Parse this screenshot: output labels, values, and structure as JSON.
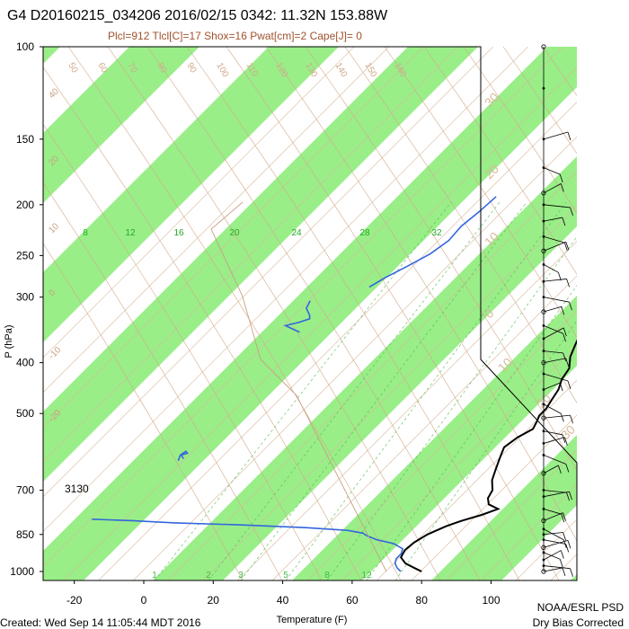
{
  "chart_data": {
    "type": "line",
    "title": "G4 D20160215_034206 2016/02/15 0342: 11.32N 153.88W",
    "subtitle": "Plcl=912 Tlcl[C]=17 Shox=16 Pwat[cm]=2 Cape[J]= 0",
    "xlabel": "Temperature (F)",
    "ylabel": "P (hPa)",
    "x_ticks": [
      "-20",
      "0",
      "20",
      "40",
      "60",
      "80",
      "100"
    ],
    "y_ticks": [
      "100",
      "150",
      "200",
      "250",
      "300",
      "400",
      "500",
      "700",
      "850",
      "1000"
    ],
    "pressure_levels": [
      100,
      150,
      200,
      250,
      300,
      400,
      500,
      700,
      850,
      1000
    ],
    "xlim": [
      -29,
      102
    ],
    "ylim": [
      1000,
      100
    ],
    "mixing_ratio_labels": [
      "8",
      "12",
      "16",
      "20",
      "24",
      "28",
      "32"
    ],
    "mixing_ratio_bottom_labels": [
      "1",
      "2",
      "3",
      "5",
      "8",
      "12"
    ],
    "isotherm_labels_left": [
      "40",
      "20",
      "10",
      "0",
      "-10",
      "-20"
    ],
    "isotherm_labels_right": [
      "30",
      "20",
      "10",
      "0",
      "10",
      "20",
      "30"
    ],
    "dry_adiabat_labels": [
      "50",
      "60",
      "70",
      "80",
      "90",
      "100",
      "110",
      "120",
      "130",
      "140",
      "150",
      "160"
    ],
    "annotation": "3130",
    "series": [
      {
        "name": "Temperature",
        "color": "#000000",
        "points": [
          [
            1000,
            80
          ],
          [
            985,
            77
          ],
          [
            965,
            73
          ],
          [
            940,
            70
          ],
          [
            910,
            69
          ],
          [
            880,
            69.5
          ],
          [
            850,
            71
          ],
          [
            820,
            74
          ],
          [
            800,
            77
          ],
          [
            780,
            81
          ],
          [
            760,
            84
          ],
          [
            745,
            80
          ],
          [
            725,
            78
          ],
          [
            700,
            77
          ],
          [
            670,
            74
          ],
          [
            640,
            72
          ],
          [
            610,
            70
          ],
          [
            580,
            68
          ],
          [
            555,
            69
          ],
          [
            535,
            71
          ],
          [
            518,
            70
          ],
          [
            505,
            69
          ],
          [
            490,
            69
          ],
          [
            470,
            68
          ],
          [
            450,
            67
          ],
          [
            430,
            65
          ],
          [
            410,
            64
          ],
          [
            390,
            61
          ],
          [
            370,
            59
          ],
          [
            350,
            57
          ],
          [
            330,
            54
          ],
          [
            310,
            52
          ],
          [
            290,
            50
          ],
          [
            270,
            47
          ],
          [
            250,
            43
          ],
          [
            230,
            38
          ],
          [
            210,
            33
          ],
          [
            195,
            28
          ],
          [
            182,
            24
          ],
          [
            172,
            20
          ],
          [
            166,
            17
          ]
        ]
      },
      {
        "name": "Dewpoint",
        "color": "#3366dd",
        "segments": [
          [
            [
              1000,
              74
            ],
            [
              985,
              72
            ],
            [
              965,
              70
            ],
            [
              945,
              69
            ],
            [
              925,
              69
            ],
            [
              905,
              68
            ],
            [
              885,
              64
            ],
            [
              870,
              58
            ],
            [
              855,
              54
            ],
            [
              845,
              52
            ],
            [
              835,
              47
            ],
            [
              825,
              34
            ],
            [
              815,
              14
            ],
            [
              808,
              -5
            ],
            [
              800,
              -18
            ],
            [
              797,
              -25
            ],
            [
              795,
              -30
            ]
          ],
          [
            [
              615,
              -22
            ],
            [
              600,
              -23
            ],
            [
              590,
              -22.5
            ],
            [
              595,
              -21.5
            ],
            [
              600,
              -22.7
            ],
            [
              610,
              -21
            ]
          ],
          [
            [
              350,
              -24
            ],
            [
              345,
              -27
            ],
            [
              340,
              -30
            ],
            [
              335,
              -27
            ],
            [
              330,
              -25
            ],
            [
              325,
              -26
            ],
            [
              315,
              -29
            ],
            [
              305,
              -30
            ]
          ],
          [
            [
              287,
              -17
            ],
            [
              275,
              -15
            ],
            [
              262,
              -12
            ],
            [
              248,
              -9
            ],
            [
              234,
              -7.5
            ],
            [
              220,
              -8
            ],
            [
              206,
              -7
            ],
            [
              193,
              -6.5
            ]
          ]
        ]
      }
    ],
    "wind_barbs": "right column, 100 to 1000 hPa",
    "dry_bands_color": "#99ee88"
  },
  "footer": {
    "created": "Created: Wed Sep 14 11:05:44 MDT 2016",
    "org": "NOAA/ESRL PSD",
    "correction": "Dry Bias Corrected"
  }
}
